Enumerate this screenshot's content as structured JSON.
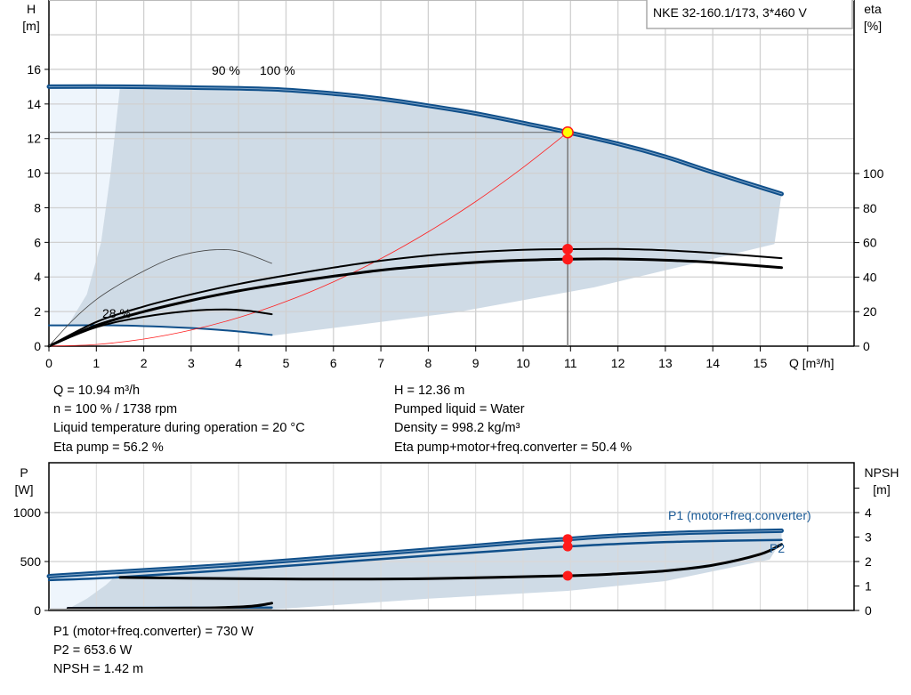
{
  "colors": {
    "curve_blue": "#0f4f8a",
    "region": "#cfdbe6",
    "region_light": "#eef5fc",
    "system_curve": "#ff2020",
    "marker": "#ff1a1a",
    "operating_point": "#ffff00",
    "label_blue": "#1a5a96"
  },
  "legend_box": "NKE 32-160.1/173, 3*460 V",
  "chart_data": [
    {
      "type": "line",
      "xlabel": "Q [m³/h]",
      "ylabel_left": [
        "H",
        "[m]"
      ],
      "ylabel_right": [
        "eta",
        "[%]"
      ],
      "xlim": [
        0,
        17
      ],
      "ylim_left": [
        0,
        20
      ],
      "ylim_right": [
        0,
        200
      ],
      "xticks": [
        "0",
        "1",
        "2",
        "3",
        "4",
        "5",
        "6",
        "7",
        "8",
        "9",
        "10",
        "11",
        "12",
        "13",
        "14",
        "15"
      ],
      "yticks_left": [
        "0",
        "2",
        "4",
        "6",
        "8",
        "10",
        "12",
        "14",
        "16"
      ],
      "yticks_right": [
        "0",
        "20",
        "40",
        "60",
        "80",
        "100"
      ],
      "grid": true,
      "curve_labels": [
        "100 %",
        "90 %",
        "28 %"
      ],
      "series": [
        {
          "axis": "H",
          "style": "thick-blue",
          "points": [
            [
              0,
              15
            ],
            [
              1.5,
              15
            ],
            [
              3,
              14.95
            ],
            [
              4.7,
              14.85
            ],
            [
              6,
              14.6
            ],
            [
              7,
              14.3
            ],
            [
              8,
              13.9
            ],
            [
              9,
              13.45
            ],
            [
              10,
              12.9
            ],
            [
              10.94,
              12.36
            ],
            [
              12,
              11.7
            ],
            [
              13,
              10.95
            ],
            [
              14,
              10.05
            ],
            [
              15.45,
              8.8
            ]
          ]
        },
        {
          "axis": "H",
          "style": "thin-blue",
          "points": [
            [
              0,
              1.2
            ],
            [
              1.5,
              1.2
            ],
            [
              3,
              1.05
            ],
            [
              4,
              0.85
            ],
            [
              4.7,
              0.65
            ]
          ]
        },
        {
          "axis": "H",
          "style": "system-red",
          "points": [
            [
              0,
              0
            ],
            [
              1,
              0.1
            ],
            [
              2,
              0.41
            ],
            [
              3,
              0.93
            ],
            [
              4,
              1.65
            ],
            [
              5,
              2.58
            ],
            [
              6,
              3.72
            ],
            [
              7,
              5.06
            ],
            [
              8,
              6.61
            ],
            [
              9,
              8.36
            ],
            [
              10,
              10.33
            ],
            [
              10.94,
              12.36
            ]
          ]
        },
        {
          "axis": "eta",
          "style": "black",
          "points": [
            [
              0,
              0
            ],
            [
              1,
              14
            ],
            [
              2,
              23
            ],
            [
              3,
              30
            ],
            [
              4,
              36
            ],
            [
              5,
              41
            ],
            [
              6,
              45.5
            ],
            [
              7,
              49.5
            ],
            [
              8,
              52.5
            ],
            [
              9,
              54.5
            ],
            [
              10,
              55.8
            ],
            [
              10.94,
              56.2
            ],
            [
              12,
              56.3
            ],
            [
              13,
              55.5
            ],
            [
              14,
              54
            ],
            [
              15.45,
              51
            ]
          ]
        },
        {
          "axis": "eta",
          "style": "black-thick",
          "points": [
            [
              0,
              0
            ],
            [
              1,
              12
            ],
            [
              2,
              20
            ],
            [
              3,
              26.5
            ],
            [
              4,
              32
            ],
            [
              5,
              36.5
            ],
            [
              6,
              40.5
            ],
            [
              7,
              44
            ],
            [
              8,
              46.5
            ],
            [
              9,
              48.5
            ],
            [
              10,
              49.8
            ],
            [
              10.94,
              50.4
            ],
            [
              12,
              50.5
            ],
            [
              13,
              49.8
            ],
            [
              14,
              48.5
            ],
            [
              15.45,
              45.5
            ]
          ]
        },
        {
          "axis": "eta",
          "style": "black",
          "points": [
            [
              0,
              0
            ],
            [
              1,
              11
            ],
            [
              2,
              17
            ],
            [
              3,
              20.5
            ],
            [
              3.7,
              21.3
            ],
            [
              4.2,
              20.5
            ],
            [
              4.7,
              18.5
            ]
          ]
        },
        {
          "axis": "eta",
          "style": "thin-grey",
          "points": [
            [
              0,
              0
            ],
            [
              0.5,
              15
            ],
            [
              1,
              27
            ],
            [
              1.5,
              36
            ],
            [
              2,
              43.5
            ],
            [
              2.5,
              50
            ],
            [
              3,
              54
            ],
            [
              3.5,
              55.8
            ],
            [
              4,
              55
            ],
            [
              4.7,
              48
            ]
          ]
        }
      ],
      "operating_region": [
        [
          1.5,
          15
        ],
        [
          3,
          14.95
        ],
        [
          4.7,
          14.85
        ],
        [
          6,
          14.6
        ],
        [
          7,
          14.3
        ],
        [
          8,
          13.9
        ],
        [
          9,
          13.45
        ],
        [
          10,
          12.9
        ],
        [
          10.94,
          12.36
        ],
        [
          12,
          11.7
        ],
        [
          13,
          10.95
        ],
        [
          14,
          10.05
        ],
        [
          15.45,
          8.8
        ],
        [
          15.3,
          5.9
        ],
        [
          11.5,
          3.4
        ],
        [
          8.57,
          1.95
        ],
        [
          4.7,
          0.6
        ],
        [
          4,
          0.85
        ],
        [
          3,
          1.05
        ],
        [
          1.5,
          1.2
        ],
        [
          0.4,
          1.2
        ],
        [
          0.8,
          3
        ],
        [
          1.1,
          6
        ],
        [
          1.3,
          10
        ],
        [
          1.5,
          15
        ]
      ],
      "operating_region_light": [
        [
          0,
          15
        ],
        [
          1.5,
          15
        ],
        [
          1.3,
          10
        ],
        [
          1.1,
          6
        ],
        [
          0.8,
          3
        ],
        [
          0.4,
          1.2
        ],
        [
          0,
          1.2
        ]
      ],
      "operating_point": {
        "Q": 10.94,
        "H": 12.36,
        "eta_pump": 56.2,
        "eta_total": 50.4
      }
    },
    {
      "type": "line",
      "ylabel_left": [
        "P",
        "[W]"
      ],
      "ylabel_right": [
        "NPSH",
        "[m]"
      ],
      "xlim": [
        0,
        17
      ],
      "ylim_left": [
        0,
        1500
      ],
      "ylim_right": [
        0,
        6
      ],
      "yticks_left": [
        "0",
        "500",
        "1000"
      ],
      "yticks_right": [
        "0",
        "1",
        "2",
        "3",
        "4"
      ],
      "grid": true,
      "series_labels": [
        "P1 (motor+freq.converter)",
        "P2"
      ],
      "series": [
        {
          "name": "P1 (motor+freq.converter)",
          "axis": "P",
          "style": "thick-blue",
          "points": [
            [
              0,
              350
            ],
            [
              1.5,
              395
            ],
            [
              4,
              470
            ],
            [
              6,
              545
            ],
            [
              8,
              620
            ],
            [
              10,
              700
            ],
            [
              10.94,
              730
            ],
            [
              12,
              765
            ],
            [
              13.5,
              795
            ],
            [
              15.45,
              815
            ]
          ]
        },
        {
          "name": "P2",
          "axis": "P",
          "style": "blue",
          "points": [
            [
              0,
              310
            ],
            [
              1.5,
              340
            ],
            [
              4,
              420
            ],
            [
              6,
              490
            ],
            [
              8,
              560
            ],
            [
              10,
              625
            ],
            [
              10.94,
              653.6
            ],
            [
              12,
              680
            ],
            [
              13.5,
              705
            ],
            [
              15.45,
              720
            ]
          ]
        },
        {
          "axis": "NPSH",
          "style": "black-thick",
          "points": [
            [
              1.5,
              1.35
            ],
            [
              4,
              1.3
            ],
            [
              6,
              1.28
            ],
            [
              8,
              1.3
            ],
            [
              10.94,
              1.42
            ],
            [
              12,
              1.5
            ],
            [
              13,
              1.62
            ],
            [
              14,
              1.85
            ],
            [
              15,
              2.3
            ],
            [
              15.45,
              2.7
            ]
          ]
        },
        {
          "axis": "P",
          "style": "blue",
          "points": [
            [
              0.4,
              25
            ],
            [
              4.7,
              30
            ]
          ]
        },
        {
          "axis": "NPSH",
          "style": "black-thick",
          "points": [
            [
              0.4,
              0.08
            ],
            [
              3,
              0.1
            ],
            [
              4,
              0.14
            ],
            [
              4.4,
              0.2
            ],
            [
              4.7,
              0.3
            ]
          ]
        }
      ],
      "operating_region": [
        [
          1.5,
          395
        ],
        [
          4,
          470
        ],
        [
          6,
          545
        ],
        [
          8,
          620
        ],
        [
          10,
          700
        ],
        [
          12,
          765
        ],
        [
          13.5,
          795
        ],
        [
          15.45,
          815
        ],
        [
          15.45,
          720
        ],
        [
          15.2,
          520
        ],
        [
          13,
          300
        ],
        [
          10.94,
          200
        ],
        [
          8,
          120
        ],
        [
          4.7,
          10
        ],
        [
          0.4,
          15
        ],
        [
          0.8,
          120
        ],
        [
          1.2,
          260
        ],
        [
          1.5,
          395
        ]
      ],
      "operating_region_light": [
        [
          0,
          330
        ],
        [
          1.5,
          395
        ],
        [
          1.2,
          260
        ],
        [
          0.8,
          120
        ],
        [
          0.4,
          15
        ],
        [
          0,
          15
        ]
      ],
      "operating_point": {
        "P1": 730,
        "P2": 653.6,
        "NPSH": 1.42
      }
    }
  ],
  "info_top": {
    "left": [
      "Q = 10.94 m³/h",
      "n = 100 % / 1738 rpm",
      "Liquid temperature during operation = 20 °C",
      "Eta pump = 56.2 %"
    ],
    "right": [
      "H = 12.36 m",
      "Pumped liquid = Water",
      "Density = 998.2 kg/m³",
      "Eta pump+motor+freq.converter = 50.4 %"
    ]
  },
  "info_bottom": [
    "P1 (motor+freq.converter) = 730 W",
    "P2 = 653.6 W",
    "NPSH = 1.42 m"
  ]
}
